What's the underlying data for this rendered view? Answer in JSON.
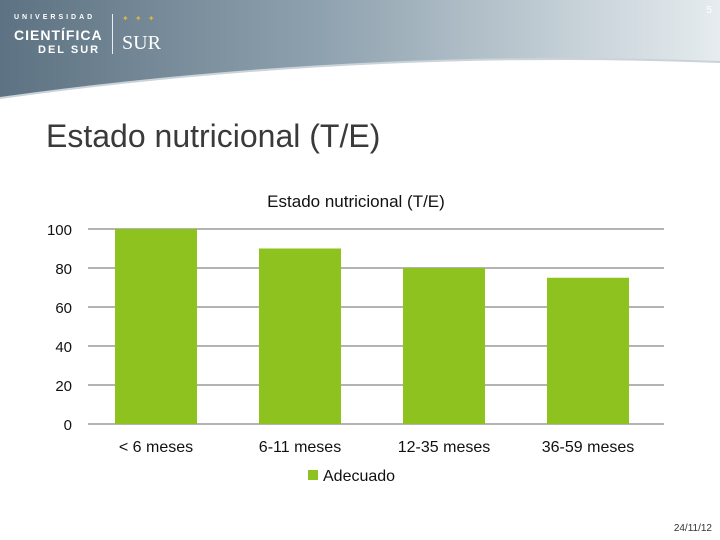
{
  "header": {
    "logo": {
      "line1": "UNIVERSIDAD",
      "line2": "CIENTÍFICA",
      "line3": "DEL SUR",
      "brand": "SUR"
    },
    "page_number": "5"
  },
  "slide": {
    "title": "Estado nutricional (T/E)",
    "date": "24/11/12"
  },
  "colors": {
    "bar": "#8dc21f",
    "grid": "#9a9a9a",
    "header_dark": "#6e8190",
    "header_light": "#dfe6ea"
  },
  "chart_data": {
    "type": "bar",
    "title": "Estado nutricional (T/E)",
    "categories": [
      "< 6 meses",
      "6-11 meses",
      "12-35 meses",
      "36-59 meses"
    ],
    "series": [
      {
        "name": "Adecuado",
        "values": [
          100,
          90,
          80,
          75
        ]
      }
    ],
    "ylim": [
      0,
      100
    ],
    "yticks": [
      0,
      20,
      40,
      60,
      80,
      100
    ],
    "grid": true,
    "legend": "bottom"
  }
}
